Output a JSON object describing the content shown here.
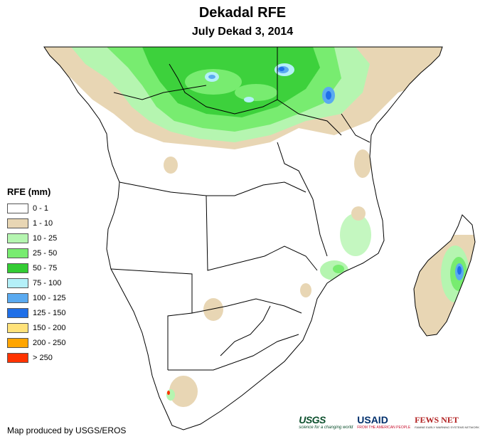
{
  "title": "Dekadal RFE",
  "subtitle": "July Dekad 3, 2014",
  "legend": {
    "title": "RFE (mm)",
    "items": [
      {
        "label": "0 - 1",
        "color": "#ffffff"
      },
      {
        "label": "1 - 10",
        "color": "#e8d6b4"
      },
      {
        "label": "10 - 25",
        "color": "#b5f5b0"
      },
      {
        "label": "25 - 50",
        "color": "#78ec70"
      },
      {
        "label": "50 - 75",
        "color": "#33cc33"
      },
      {
        "label": "75 - 100",
        "color": "#b4f0f8"
      },
      {
        "label": "100 - 125",
        "color": "#5aaaf0"
      },
      {
        "label": "125 - 150",
        "color": "#1f6fe8"
      },
      {
        "label": "150 - 200",
        "color": "#ffe27a"
      },
      {
        "label": "200 - 250",
        "color": "#ffa500"
      },
      {
        "label": "> 250",
        "color": "#ff3300"
      }
    ]
  },
  "credit": "Map produced by USGS/EROS",
  "logos": {
    "usgs": {
      "name": "USGS",
      "tagline": "science for a changing world"
    },
    "usaid": {
      "name": "USAID",
      "tagline": "FROM THE AMERICAN PEOPLE"
    },
    "fewsnet": {
      "name": "FEWS NET",
      "tagline": "FAMINE EARLY WARNING SYSTEMS NETWORK"
    }
  }
}
